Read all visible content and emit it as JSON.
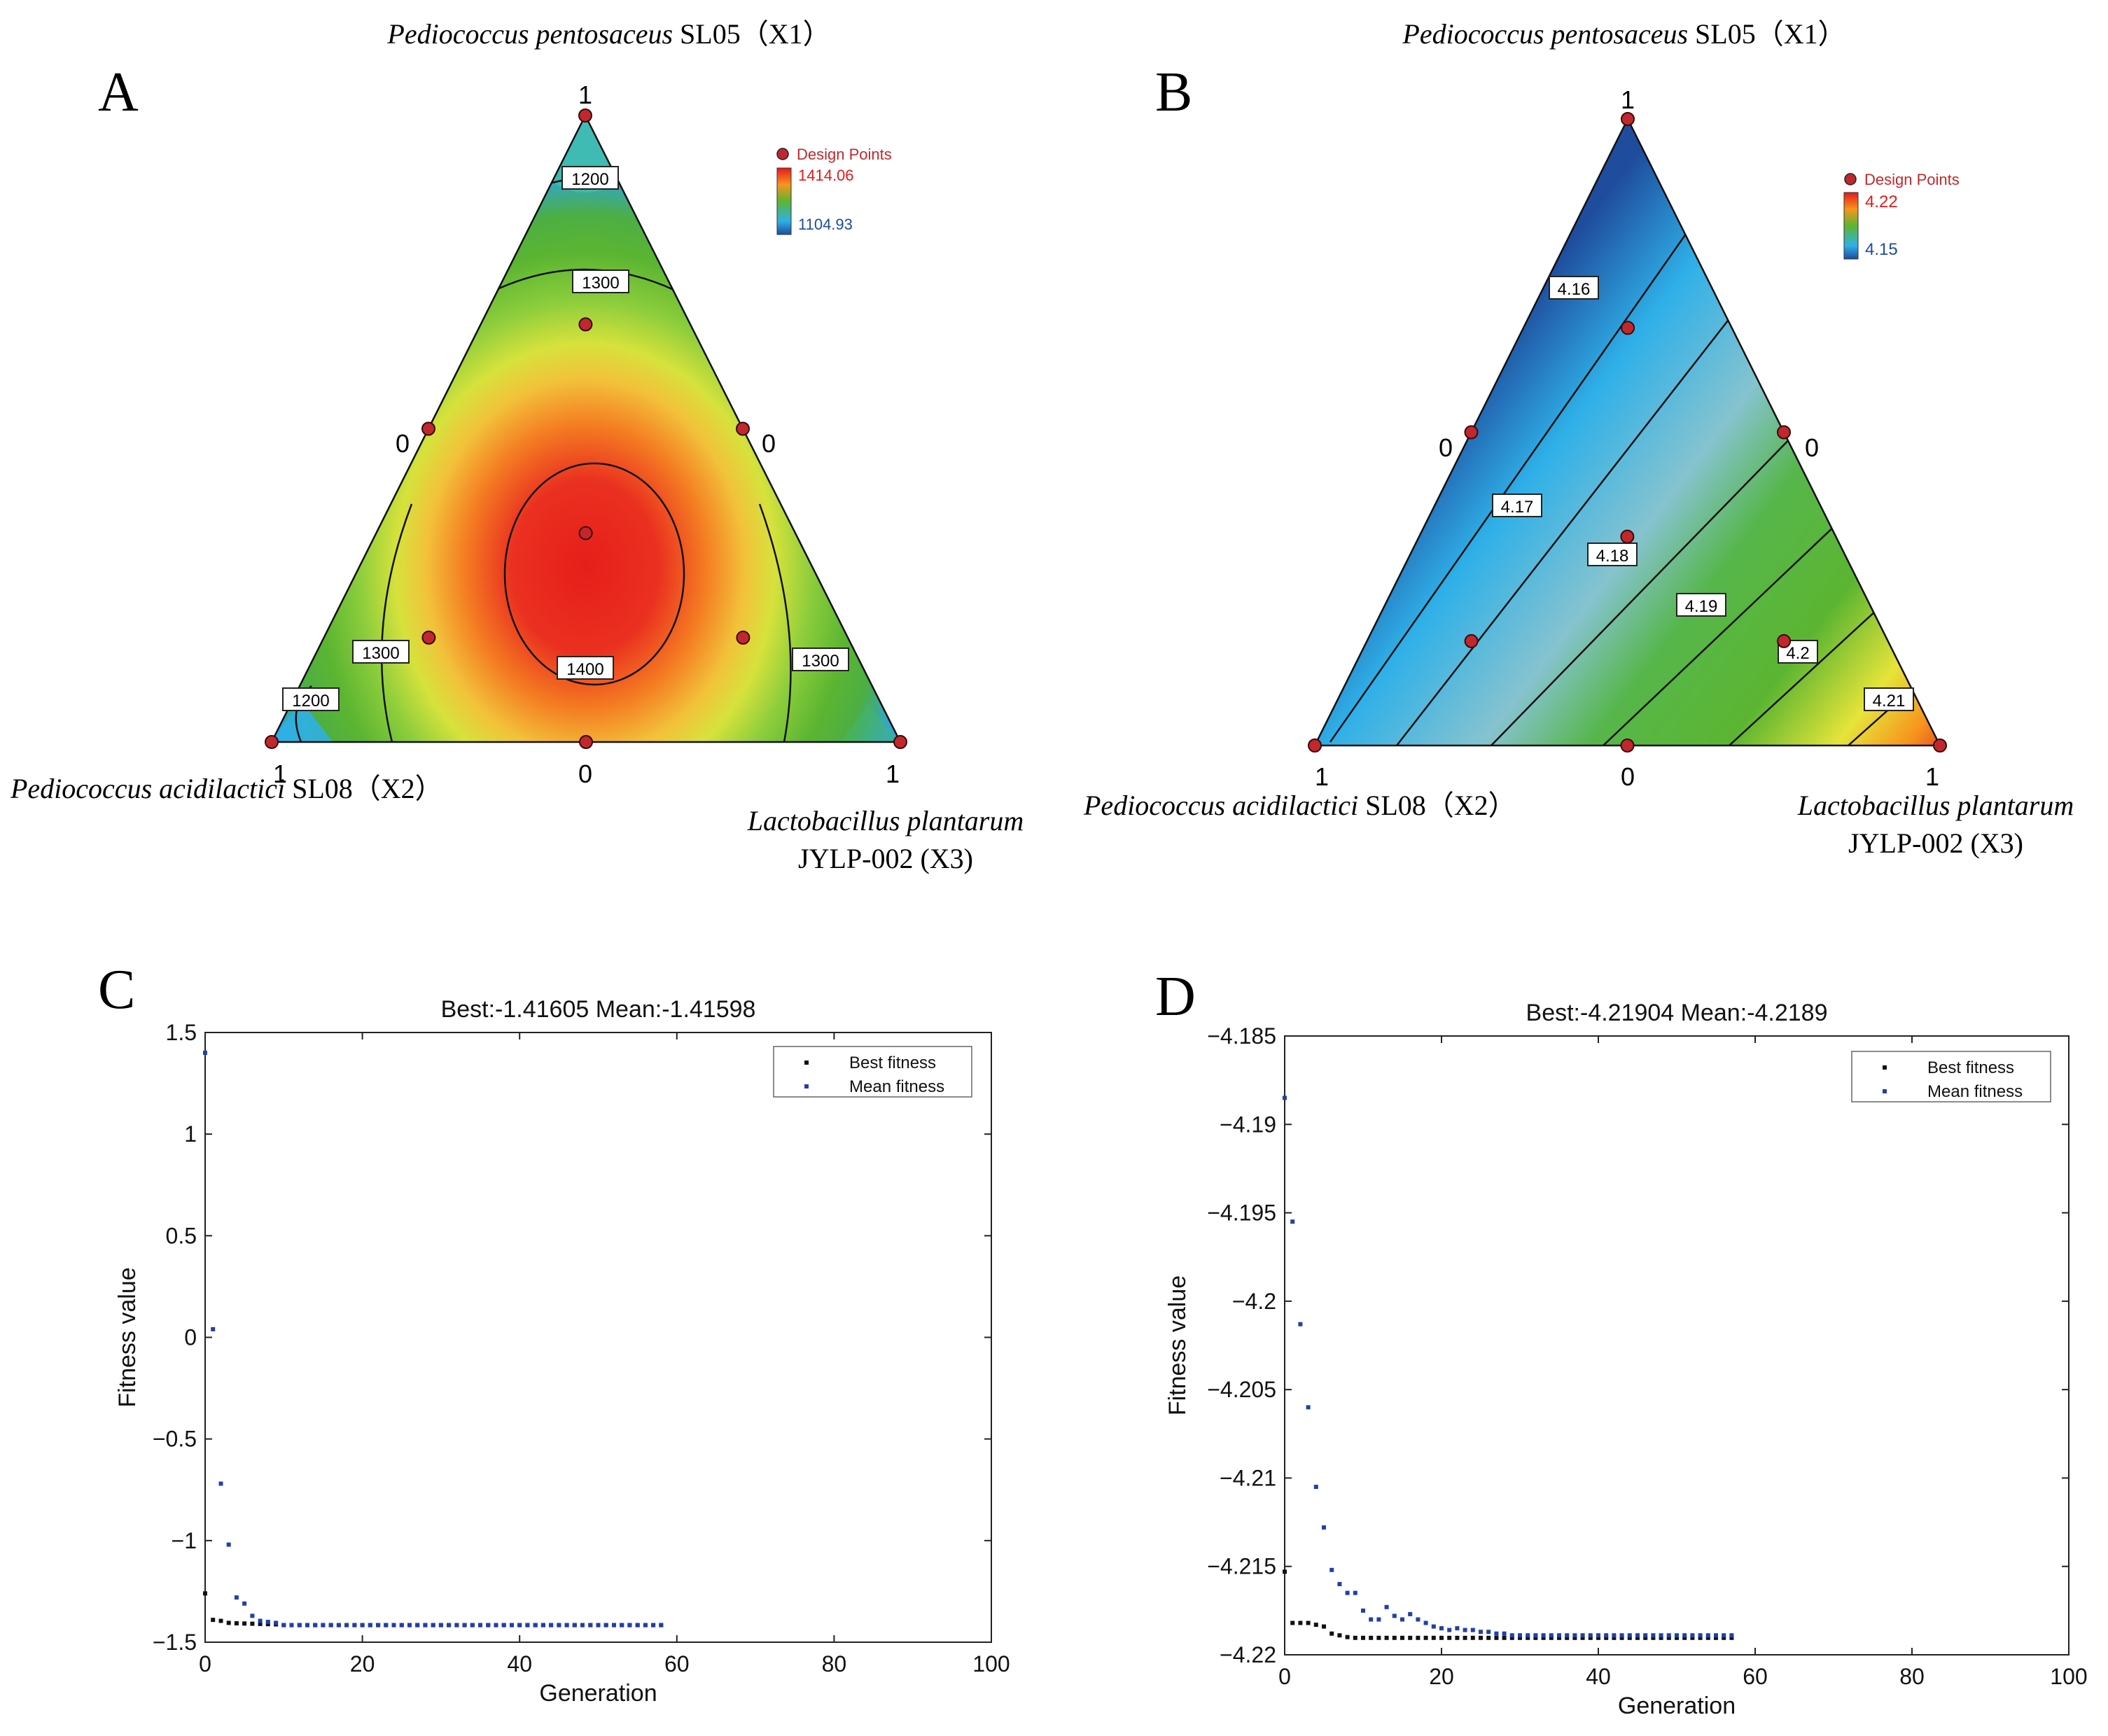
{
  "colors": {
    "red": "#e41a1c",
    "orange": "#f7941d",
    "yellow": "#f1ee3a",
    "green": "#5cb531",
    "cyan": "#2fb0e8",
    "blue": "#1f4c9d",
    "design_point": "#c0282d",
    "ga_best": "#111111",
    "ga_mean": "#2140a8"
  },
  "panels": {
    "A": {
      "letter": "A",
      "top_label_species": "Pediococcus pentosaceus",
      "top_label_strain": " SL05（X1）",
      "left_label_species": "Pediococcus acidilactici",
      "left_label_strain": " SL08（X2）",
      "right_label_species": "Lactobacillus plantarum",
      "right_label_strain": "JYLP-002 (X3)",
      "vertex_top": "1",
      "vertex_left": "1",
      "vertex_right": "1",
      "side_left_zero": "0",
      "side_right_zero": "0",
      "base_zero": "0",
      "legend_title": "Design Points",
      "legend_max": "1414.06",
      "legend_min": "1104.93",
      "contour_1200_top": "1200",
      "contour_1300_top": "1300",
      "contour_1400": "1400",
      "contour_1300_left": "1300",
      "contour_1300_right": "1300",
      "contour_1200_left": "1200"
    },
    "B": {
      "letter": "B",
      "top_label_species": "Pediococcus pentosaceus",
      "top_label_strain": " SL05（X1）",
      "left_label_species": "Pediococcus acidilactici",
      "left_label_strain": " SL08（X2）",
      "right_label_species": "Lactobacillus plantarum",
      "right_label_strain": "JYLP-002 (X3)",
      "vertex_top": "1",
      "vertex_left": "1",
      "vertex_right": "1",
      "side_left_zero": "0",
      "side_right_zero": "0",
      "base_zero": "0",
      "legend_title": "Design Points",
      "legend_max": "4.22",
      "legend_min": "4.15",
      "contour_416": "4.16",
      "contour_417": "4.17",
      "contour_418": "4.18",
      "contour_419": "4.19",
      "contour_420": "4.2",
      "contour_421": "4.21"
    },
    "C": {
      "letter": "C"
    },
    "D": {
      "letter": "D"
    }
  },
  "chart_data": [
    {
      "panel": "A",
      "type": "heatmap",
      "subtype": "ternary mixture response surface",
      "components": [
        "Pediococcus pentosaceus SL05 (X1)",
        "Pediococcus acidilactici SL08 (X2)",
        "Lactobacillus plantarum JYLP-002 (X3)"
      ],
      "colorbar_range": [
        1104.93,
        1414.06
      ],
      "contour_levels": [
        1200,
        1300,
        1400
      ],
      "design_points": [
        {
          "x1": 1,
          "x2": 0,
          "x3": 0
        },
        {
          "x1": 0,
          "x2": 1,
          "x3": 0
        },
        {
          "x1": 0,
          "x2": 0,
          "x3": 1
        },
        {
          "x1": 0.5,
          "x2": 0.5,
          "x3": 0
        },
        {
          "x1": 0.5,
          "x2": 0,
          "x3": 0.5
        },
        {
          "x1": 0,
          "x2": 0.5,
          "x3": 0.5
        },
        {
          "x1": 0.3333,
          "x2": 0.3333,
          "x3": 0.3333
        },
        {
          "x1": 0.6667,
          "x2": 0.1667,
          "x3": 0.1667
        },
        {
          "x1": 0.1667,
          "x2": 0.6667,
          "x3": 0.1667
        },
        {
          "x1": 0.1667,
          "x2": 0.1667,
          "x3": 0.6667
        }
      ],
      "legend": [
        "Design Points"
      ]
    },
    {
      "panel": "B",
      "type": "heatmap",
      "subtype": "ternary mixture response surface",
      "components": [
        "Pediococcus pentosaceus SL05 (X1)",
        "Pediococcus acidilactici SL08 (X2)",
        "Lactobacillus plantarum JYLP-002 (X3)"
      ],
      "colorbar_range": [
        4.15,
        4.22
      ],
      "contour_levels": [
        4.16,
        4.17,
        4.18,
        4.19,
        4.2,
        4.21
      ],
      "design_points": [
        {
          "x1": 1,
          "x2": 0,
          "x3": 0
        },
        {
          "x1": 0,
          "x2": 1,
          "x3": 0
        },
        {
          "x1": 0,
          "x2": 0,
          "x3": 1
        },
        {
          "x1": 0.5,
          "x2": 0.5,
          "x3": 0
        },
        {
          "x1": 0.5,
          "x2": 0,
          "x3": 0.5
        },
        {
          "x1": 0,
          "x2": 0.5,
          "x3": 0.5
        },
        {
          "x1": 0.3333,
          "x2": 0.3333,
          "x3": 0.3333
        },
        {
          "x1": 0.6667,
          "x2": 0.1667,
          "x3": 0.1667
        },
        {
          "x1": 0.1667,
          "x2": 0.6667,
          "x3": 0.1667
        },
        {
          "x1": 0.1667,
          "x2": 0.1667,
          "x3": 0.6667
        }
      ],
      "legend": [
        "Design Points"
      ]
    },
    {
      "panel": "C",
      "type": "scatter",
      "title": "Best:-1.41605 Mean:-1.41598",
      "xlabel": "Generation",
      "ylabel": "Fitness value",
      "xlim": [
        0,
        100
      ],
      "ylim": [
        -1.5,
        1.5
      ],
      "xticks": [
        0,
        20,
        40,
        60,
        80,
        100
      ],
      "xtick_labels": [
        "0",
        "20",
        "40",
        "60",
        "80",
        "100"
      ],
      "yticks": [
        -1.5,
        -1,
        -0.5,
        0,
        0.5,
        1,
        1.5
      ],
      "ytick_labels": [
        "−1.5",
        "−1",
        "−0.5",
        "0",
        "0.5",
        "1",
        "1.5"
      ],
      "series": [
        {
          "name": "Best fitness",
          "generations": 59,
          "start_values": [
            -1.26,
            -1.39,
            -1.395,
            -1.405,
            -1.407,
            -1.408,
            -1.409,
            -1.41,
            -1.411,
            -1.412
          ],
          "converged_value": -1.41605
        },
        {
          "name": "Mean fitness",
          "generations": 59,
          "start_values": [
            1.4,
            0.04,
            -0.72,
            -1.02,
            -1.28,
            -1.31,
            -1.37,
            -1.395,
            -1.4,
            -1.405
          ],
          "converged_value": -1.41598
        }
      ],
      "legend": [
        "Best fitness",
        "Mean fitness"
      ]
    },
    {
      "panel": "D",
      "type": "scatter",
      "title": "Best:-4.21904 Mean:-4.2189",
      "xlabel": "Generation",
      "ylabel": "Fitness value",
      "xlim": [
        0,
        100
      ],
      "ylim": [
        -4.22,
        -4.185
      ],
      "xticks": [
        0,
        20,
        40,
        60,
        80,
        100
      ],
      "xtick_labels": [
        "0",
        "20",
        "40",
        "60",
        "80",
        "100"
      ],
      "yticks": [
        -4.22,
        -4.215,
        -4.21,
        -4.205,
        -4.2,
        -4.195,
        -4.19,
        -4.185
      ],
      "ytick_labels": [
        "−4.22",
        "−4.215",
        "−4.21",
        "−4.205",
        "−4.2",
        "−4.195",
        "−4.19",
        "−4.185"
      ],
      "series": [
        {
          "name": "Best fitness",
          "generations": 58,
          "start_values": [
            -4.2153,
            -4.2182,
            -4.2182,
            -4.2182,
            -4.2183,
            -4.2184,
            -4.2188,
            -4.2189,
            -4.219
          ],
          "converged_value": -4.21904
        },
        {
          "name": "Mean fitness",
          "generations": 58,
          "start_values": [
            -4.1885,
            -4.1955,
            -4.2013,
            -4.206,
            -4.2105,
            -4.2128,
            -4.2152,
            -4.216,
            -4.2165,
            -4.2165,
            -4.2175,
            -4.218,
            -4.218,
            -4.2173,
            -4.2178,
            -4.218,
            -4.2177,
            -4.218,
            -4.2182,
            -4.2184,
            -4.2185,
            -4.2186,
            -4.2185,
            -4.2186,
            -4.2186,
            -4.2187,
            -4.2187,
            -4.2188,
            -4.2188,
            -4.2189
          ],
          "converged_value": -4.2189
        }
      ],
      "legend": [
        "Best fitness",
        "Mean fitness"
      ]
    }
  ]
}
